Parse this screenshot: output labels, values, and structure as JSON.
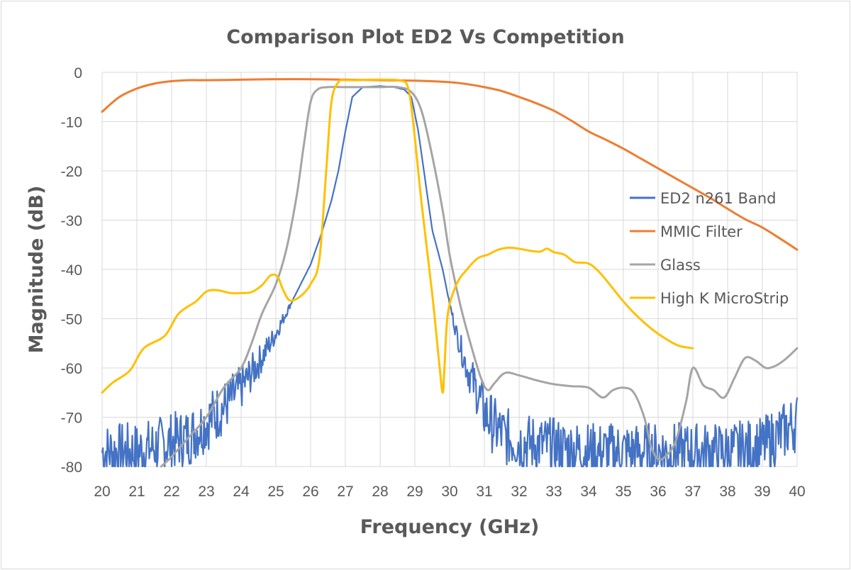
{
  "chart_data": {
    "type": "line",
    "title": "Comparison Plot ED2 Vs Competition",
    "xlabel": "Frequency (GHz)",
    "ylabel": "Magnitude (dB)",
    "xlim": [
      20,
      40
    ],
    "ylim": [
      -80,
      0
    ],
    "x_ticks": [
      "20",
      "21",
      "22",
      "23",
      "24",
      "25",
      "26",
      "27",
      "28",
      "29",
      "30",
      "31",
      "32",
      "33",
      "34",
      "35",
      "36",
      "37",
      "38",
      "39",
      "40"
    ],
    "y_ticks": [
      "0",
      "-10",
      "-20",
      "-30",
      "-40",
      "-50",
      "-60",
      "-70",
      "-80"
    ],
    "grid": "vertical and horizontal major gridlines",
    "legend_position": "right",
    "series": [
      {
        "name": "ED2 n261 Band",
        "color": "#4472c4",
        "noisy": true,
        "x": [
          20.0,
          21.0,
          22.0,
          22.5,
          23.0,
          23.5,
          24.0,
          24.5,
          25.0,
          25.5,
          26.0,
          26.3,
          26.6,
          26.8,
          27.0,
          27.2,
          27.5,
          28.0,
          28.4,
          28.7,
          28.9,
          29.1,
          29.3,
          29.5,
          29.8,
          30.0,
          30.2,
          30.5,
          30.8,
          31.0,
          31.3,
          31.6,
          32.0,
          33.0,
          34.0,
          35.0,
          36.0,
          37.0,
          38.0,
          39.0,
          40.0
        ],
        "y": [
          -77,
          -77,
          -75,
          -74,
          -71,
          -68,
          -64,
          -59,
          -53,
          -46,
          -39,
          -33,
          -26,
          -20,
          -12,
          -5,
          -3,
          -2.8,
          -3,
          -3.5,
          -5,
          -12,
          -22,
          -32,
          -40,
          -47,
          -53,
          -60,
          -65,
          -69,
          -72,
          -74,
          -75,
          -76,
          -77,
          -77,
          -77,
          -77,
          -77,
          -76,
          -71
        ]
      },
      {
        "name": "MMIC Filter",
        "color": "#ed7d31",
        "noisy": false,
        "x": [
          20,
          20.5,
          21,
          21.5,
          22,
          22.5,
          23,
          24,
          25,
          26,
          27,
          28,
          29,
          30,
          30.5,
          31,
          31.5,
          32,
          32.5,
          33,
          33.5,
          34,
          34.5,
          35,
          35.5,
          36,
          36.5,
          37,
          37.5,
          38,
          38.5,
          39,
          39.5,
          40
        ],
        "y": [
          -8,
          -5,
          -3.3,
          -2.3,
          -1.8,
          -1.6,
          -1.6,
          -1.5,
          -1.4,
          -1.4,
          -1.5,
          -1.6,
          -1.7,
          -2,
          -2.4,
          -3,
          -3.8,
          -5,
          -6.3,
          -7.8,
          -9.8,
          -12,
          -13.7,
          -15.5,
          -17.5,
          -19.5,
          -21.5,
          -23.5,
          -25.5,
          -27.7,
          -29.8,
          -31.5,
          -33.7,
          -36
        ]
      },
      {
        "name": "Glass",
        "color": "#a5a5a5",
        "noisy": false,
        "x": [
          21.7,
          22.0,
          22.5,
          23.0,
          23.5,
          24.0,
          24.3,
          24.6,
          25.0,
          25.3,
          25.6,
          25.8,
          26.0,
          26.2,
          26.5,
          27.0,
          27.5,
          28.0,
          28.5,
          28.9,
          29.2,
          29.5,
          29.8,
          30.0,
          30.3,
          30.6,
          30.9,
          31.1,
          31.3,
          31.6,
          32.0,
          32.5,
          33.0,
          33.5,
          34.0,
          34.4,
          34.7,
          35.0,
          35.3,
          35.6,
          35.8,
          36.0,
          36.2,
          36.5,
          36.8,
          37.0,
          37.3,
          37.6,
          37.9,
          38.2,
          38.5,
          38.8,
          39.1,
          39.4,
          39.7,
          40.0
        ],
        "y": [
          -80,
          -78,
          -74,
          -70,
          -64,
          -60,
          -55,
          -49,
          -43,
          -36,
          -25,
          -15,
          -6,
          -3.5,
          -3,
          -3,
          -3,
          -3,
          -3,
          -4,
          -8,
          -17,
          -28,
          -37,
          -47,
          -55,
          -62,
          -64.5,
          -63,
          -61,
          -61.5,
          -62.5,
          -63.3,
          -63.7,
          -64,
          -66,
          -64.5,
          -64,
          -65,
          -70,
          -76,
          -78.5,
          -78,
          -75,
          -67,
          -60,
          -63.5,
          -64.5,
          -66,
          -62,
          -58,
          -58.5,
          -60,
          -59.5,
          -58,
          -56
        ]
      },
      {
        "name": "High K MicroStrip",
        "color": "#ffc000",
        "noisy": false,
        "x": [
          20.0,
          20.3,
          20.8,
          21.2,
          21.8,
          22.2,
          22.7,
          23.0,
          23.3,
          23.7,
          24.0,
          24.3,
          24.6,
          24.85,
          25.05,
          25.2,
          25.4,
          25.7,
          26.0,
          26.25,
          26.45,
          26.6,
          26.8,
          27.0,
          27.3,
          27.7,
          28.2,
          28.6,
          28.8,
          28.95,
          29.2,
          29.5,
          29.7,
          29.8,
          29.85,
          29.95,
          30.2,
          30.5,
          30.8,
          31.1,
          31.4,
          31.7,
          32.0,
          32.3,
          32.6,
          32.8,
          33.0,
          33.3,
          33.6,
          34.0,
          34.3,
          34.6,
          35.0,
          35.4,
          35.8,
          36.2,
          36.6,
          37.0
        ],
        "y": [
          -65,
          -63,
          -60.5,
          -56,
          -53.5,
          -49,
          -46.5,
          -44.5,
          -44.2,
          -44.8,
          -44.8,
          -44.6,
          -43.2,
          -41.2,
          -41.5,
          -44,
          -46.3,
          -45.5,
          -43,
          -38,
          -20,
          -6,
          -2,
          -1.6,
          -1.6,
          -1.5,
          -1.5,
          -1.7,
          -3,
          -10,
          -27,
          -45,
          -59,
          -65,
          -60,
          -49,
          -43,
          -40,
          -37.8,
          -37,
          -36,
          -35.6,
          -35.8,
          -36.2,
          -36.4,
          -35.8,
          -36.5,
          -37,
          -38.5,
          -38.8,
          -40.5,
          -43,
          -46.5,
          -49.5,
          -52,
          -54,
          -55.5,
          -56
        ]
      }
    ]
  }
}
